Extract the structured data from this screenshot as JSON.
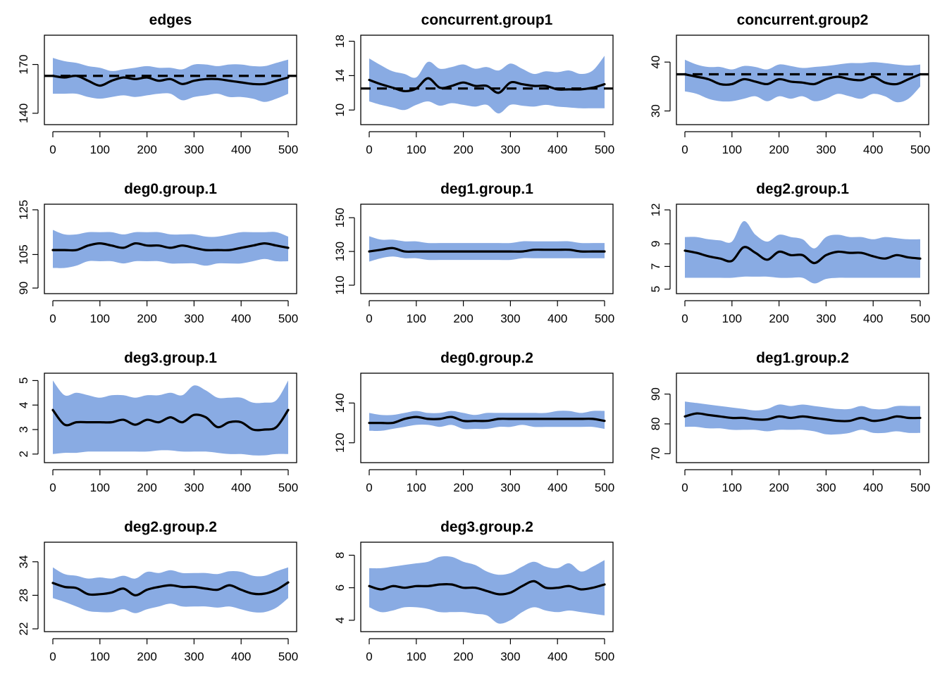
{
  "colors": {
    "band": "#89ABE3",
    "line": "#000000"
  },
  "chart_data": [
    {
      "type": "area",
      "title": "edges",
      "xlim": [
        0,
        500
      ],
      "ylim": [
        140,
        170
      ],
      "yrange": [
        133,
        188
      ],
      "xticks": [
        0,
        100,
        200,
        300,
        400,
        500
      ],
      "yticks": [
        140,
        170
      ],
      "target": 163,
      "x": [
        0,
        25,
        50,
        75,
        100,
        125,
        150,
        175,
        200,
        225,
        250,
        275,
        300,
        325,
        350,
        375,
        400,
        425,
        450,
        475,
        500
      ],
      "mean": [
        163,
        162,
        163,
        160,
        157,
        160,
        162,
        161,
        162,
        160,
        161,
        158,
        160,
        161,
        161,
        160,
        159,
        158,
        158,
        160,
        162
      ],
      "upper": [
        174,
        172,
        171,
        169,
        168,
        166,
        167,
        168,
        169,
        168,
        168,
        167,
        170,
        170,
        169,
        170,
        170,
        169,
        169,
        171,
        173
      ],
      "lower": [
        152,
        152,
        152,
        150,
        149,
        150,
        151,
        150,
        151,
        152,
        152,
        148,
        150,
        151,
        152,
        150,
        150,
        149,
        147,
        149,
        152
      ]
    },
    {
      "type": "area",
      "title": "concurrent.group1",
      "xlim": [
        0,
        500
      ],
      "ylim": [
        10,
        18
      ],
      "yrange": [
        8.3,
        18.7
      ],
      "xticks": [
        0,
        100,
        200,
        300,
        400,
        500
      ],
      "yticks": [
        10,
        14,
        18
      ],
      "target": 12.5,
      "x": [
        0,
        25,
        50,
        75,
        100,
        125,
        150,
        175,
        200,
        225,
        250,
        275,
        300,
        325,
        350,
        375,
        400,
        425,
        450,
        475,
        500
      ],
      "mean": [
        13.5,
        13.0,
        12.6,
        12.2,
        12.5,
        13.7,
        12.6,
        12.8,
        13.2,
        12.8,
        12.8,
        12.0,
        13.2,
        13.0,
        12.8,
        12.8,
        12.4,
        12.4,
        12.4,
        12.6,
        13.0
      ],
      "upper": [
        16.0,
        15.2,
        14.5,
        14.2,
        13.8,
        15.6,
        14.8,
        15.0,
        15.3,
        14.8,
        15.0,
        14.6,
        15.4,
        14.8,
        14.2,
        14.5,
        14.4,
        14.6,
        14.2,
        14.6,
        16.3
      ],
      "lower": [
        11.0,
        10.6,
        10.3,
        10.0,
        10.6,
        11.0,
        10.5,
        10.8,
        10.6,
        10.4,
        10.6,
        9.6,
        10.6,
        10.5,
        10.4,
        10.6,
        10.4,
        10.3,
        10.2,
        10.2,
        10.2
      ]
    },
    {
      "type": "area",
      "title": "concurrent.group2",
      "xlim": [
        0,
        500
      ],
      "ylim": [
        30,
        40
      ],
      "yrange": [
        27.2,
        45.5
      ],
      "xticks": [
        0,
        100,
        200,
        300,
        400,
        500
      ],
      "yticks": [
        30,
        40
      ],
      "target": 37.5,
      "x": [
        0,
        25,
        50,
        75,
        100,
        125,
        150,
        175,
        200,
        225,
        250,
        275,
        300,
        325,
        350,
        375,
        400,
        425,
        450,
        475,
        500
      ],
      "mean": [
        37.5,
        37.0,
        36.5,
        35.5,
        35.5,
        36.5,
        36.0,
        35.5,
        36.5,
        36.0,
        35.8,
        35.5,
        36.5,
        37.0,
        36.5,
        36.3,
        37.0,
        35.8,
        35.5,
        36.5,
        37.5
      ],
      "upper": [
        40.5,
        39.5,
        39.0,
        39.0,
        38.5,
        39.2,
        39.0,
        38.5,
        39.5,
        39.2,
        38.8,
        39.0,
        39.2,
        39.5,
        39.8,
        39.8,
        40.0,
        39.8,
        39.5,
        39.3,
        39.5
      ],
      "lower": [
        34.0,
        33.5,
        32.5,
        32.0,
        32.0,
        32.5,
        33.0,
        32.0,
        33.0,
        32.5,
        33.0,
        32.0,
        32.5,
        33.5,
        33.0,
        32.5,
        33.5,
        33.0,
        31.8,
        32.5,
        35.0
      ]
    },
    {
      "type": "area",
      "title": "deg0.group.1",
      "xlim": [
        0,
        500
      ],
      "ylim": [
        90,
        125
      ],
      "yrange": [
        87.5,
        127.5
      ],
      "xticks": [
        0,
        100,
        200,
        300,
        400,
        500
      ],
      "yticks": [
        90,
        105,
        125
      ],
      "x": [
        0,
        25,
        50,
        75,
        100,
        125,
        150,
        175,
        200,
        225,
        250,
        275,
        300,
        325,
        350,
        375,
        400,
        425,
        450,
        475,
        500
      ],
      "mean": [
        107,
        107,
        107,
        109,
        110,
        109,
        108,
        110,
        109,
        109,
        108,
        109,
        108,
        107,
        107,
        107,
        108,
        109,
        110,
        109,
        108
      ],
      "upper": [
        116,
        114,
        114,
        115,
        115,
        115,
        114,
        115,
        115,
        115,
        114,
        114,
        114,
        113,
        113,
        114,
        115,
        115,
        115,
        115,
        113
      ],
      "lower": [
        99,
        99,
        100,
        102,
        102,
        102,
        101,
        102,
        102,
        102,
        101,
        101,
        101,
        100,
        101,
        101,
        101,
        102,
        103,
        102,
        102
      ]
    },
    {
      "type": "area",
      "title": "deg1.group.1",
      "xlim": [
        0,
        500
      ],
      "ylim": [
        110,
        150
      ],
      "yrange": [
        105,
        158
      ],
      "xticks": [
        0,
        100,
        200,
        300,
        400,
        500
      ],
      "yticks": [
        110,
        130,
        150
      ],
      "x": [
        0,
        25,
        50,
        75,
        100,
        125,
        150,
        175,
        200,
        225,
        250,
        275,
        300,
        325,
        350,
        375,
        400,
        425,
        450,
        475,
        500
      ],
      "mean": [
        130,
        131,
        132,
        130,
        130,
        130,
        130,
        130,
        130,
        130,
        130,
        130,
        130,
        130,
        131,
        131,
        131,
        131,
        130,
        130,
        130
      ],
      "upper": [
        139,
        137,
        137,
        136,
        136,
        135,
        135,
        135,
        135,
        135,
        135,
        135,
        135,
        136,
        136,
        136,
        136,
        136,
        135,
        135,
        135
      ],
      "lower": [
        124,
        126,
        127,
        126,
        126,
        125,
        125,
        125,
        125,
        125,
        125,
        125,
        125,
        126,
        126,
        126,
        126,
        126,
        126,
        126,
        126
      ]
    },
    {
      "type": "area",
      "title": "deg2.group.1",
      "xlim": [
        0,
        500
      ],
      "ylim": [
        5,
        12
      ],
      "yrange": [
        4.6,
        12.5
      ],
      "xticks": [
        0,
        100,
        200,
        300,
        400,
        500
      ],
      "yticks": [
        5,
        7,
        9,
        12
      ],
      "x": [
        0,
        25,
        50,
        75,
        100,
        125,
        150,
        175,
        200,
        225,
        250,
        275,
        300,
        325,
        350,
        375,
        400,
        425,
        450,
        475,
        500
      ],
      "mean": [
        8.4,
        8.2,
        7.9,
        7.7,
        7.5,
        8.7,
        8.2,
        7.6,
        8.3,
        8.0,
        8.0,
        7.3,
        8.0,
        8.3,
        8.2,
        8.2,
        7.9,
        7.7,
        8.0,
        7.8,
        7.7
      ],
      "upper": [
        9.6,
        9.6,
        9.4,
        9.3,
        9.2,
        11.0,
        9.8,
        9.2,
        9.8,
        9.6,
        9.4,
        8.6,
        9.6,
        9.8,
        9.6,
        9.6,
        9.4,
        9.6,
        9.5,
        9.4,
        9.4
      ],
      "lower": [
        6.0,
        6.0,
        6.0,
        6.0,
        6.0,
        6.1,
        6.1,
        6.1,
        6.0,
        6.0,
        6.0,
        5.5,
        5.9,
        6.0,
        6.0,
        6.0,
        6.0,
        6.0,
        6.0,
        6.0,
        6.0
      ]
    },
    {
      "type": "area",
      "title": "deg3.group.1",
      "xlim": [
        0,
        500
      ],
      "ylim": [
        2,
        5
      ],
      "yrange": [
        1.65,
        5.3
      ],
      "xticks": [
        0,
        100,
        200,
        300,
        400,
        500
      ],
      "yticks": [
        2,
        3,
        4,
        5
      ],
      "x": [
        0,
        25,
        50,
        75,
        100,
        125,
        150,
        175,
        200,
        225,
        250,
        275,
        300,
        325,
        350,
        375,
        400,
        425,
        450,
        475,
        500
      ],
      "mean": [
        3.8,
        3.2,
        3.3,
        3.3,
        3.3,
        3.3,
        3.4,
        3.2,
        3.4,
        3.3,
        3.5,
        3.3,
        3.6,
        3.5,
        3.1,
        3.3,
        3.3,
        3.0,
        3.0,
        3.1,
        3.8
      ],
      "upper": [
        5.0,
        4.4,
        4.5,
        4.4,
        4.3,
        4.4,
        4.4,
        4.3,
        4.4,
        4.4,
        4.5,
        4.4,
        4.8,
        4.6,
        4.3,
        4.3,
        4.3,
        4.1,
        4.1,
        4.2,
        5.0
      ],
      "lower": [
        2.0,
        2.05,
        2.05,
        2.1,
        2.1,
        2.1,
        2.1,
        2.1,
        2.1,
        2.15,
        2.15,
        2.1,
        2.1,
        2.1,
        2.05,
        2.0,
        2.0,
        1.95,
        1.95,
        2.0,
        2.0
      ]
    },
    {
      "type": "area",
      "title": "deg0.group.2",
      "xlim": [
        0,
        500
      ],
      "ylim": [
        120,
        140
      ],
      "yrange": [
        110,
        155
      ],
      "xticks": [
        0,
        100,
        200,
        300,
        400,
        500
      ],
      "yticks": [
        120,
        140
      ],
      "x": [
        0,
        25,
        50,
        75,
        100,
        125,
        150,
        175,
        200,
        225,
        250,
        275,
        300,
        325,
        350,
        375,
        400,
        425,
        450,
        475,
        500
      ],
      "mean": [
        130,
        130,
        130,
        132,
        133,
        132,
        132,
        133,
        131,
        131,
        131,
        132,
        132,
        132,
        132,
        132,
        132,
        132,
        132,
        132,
        131
      ],
      "upper": [
        135,
        134,
        134,
        135,
        136,
        135,
        135,
        136,
        135,
        134,
        135,
        135,
        135,
        135,
        135,
        135,
        136,
        136,
        135,
        136,
        136
      ],
      "lower": [
        126,
        126,
        127,
        128,
        129,
        129,
        128,
        129,
        127,
        127,
        127,
        128,
        128,
        129,
        128,
        128,
        128,
        128,
        128,
        128,
        127
      ]
    },
    {
      "type": "area",
      "title": "deg1.group.2",
      "xlim": [
        0,
        500
      ],
      "ylim": [
        70,
        90
      ],
      "yrange": [
        67,
        97
      ],
      "xticks": [
        0,
        100,
        200,
        300,
        400,
        500
      ],
      "yticks": [
        70,
        80,
        90
      ],
      "x": [
        0,
        25,
        50,
        75,
        100,
        125,
        150,
        175,
        200,
        225,
        250,
        275,
        300,
        325,
        350,
        375,
        400,
        425,
        450,
        475,
        500
      ],
      "mean": [
        82.5,
        83.5,
        83,
        82.5,
        82,
        82,
        81.5,
        81.5,
        82.5,
        82,
        82.5,
        82,
        81.5,
        81,
        81,
        82,
        81,
        81.5,
        82.5,
        82,
        82
      ],
      "upper": [
        87.5,
        87,
        86.5,
        86,
        85.5,
        85,
        84.5,
        85,
        86.5,
        86,
        86.5,
        86,
        85.5,
        85,
        85,
        86,
        85,
        85,
        86,
        86,
        86
      ],
      "lower": [
        79,
        79,
        78.5,
        78.5,
        78,
        78,
        78,
        77.5,
        78,
        78,
        78,
        77.5,
        76.5,
        76.5,
        77,
        78,
        77,
        77,
        77.5,
        77,
        77
      ]
    },
    {
      "type": "area",
      "title": "deg2.group.2",
      "xlim": [
        0,
        500
      ],
      "ylim": [
        22,
        34
      ],
      "yrange": [
        21.5,
        37.5
      ],
      "xticks": [
        0,
        100,
        200,
        300,
        400,
        500
      ],
      "yticks": [
        22,
        28,
        34
      ],
      "x": [
        0,
        25,
        50,
        75,
        100,
        125,
        150,
        175,
        200,
        225,
        250,
        275,
        300,
        325,
        350,
        375,
        400,
        425,
        450,
        475,
        500
      ],
      "mean": [
        30.2,
        29.5,
        29.3,
        28.2,
        28.2,
        28.5,
        29.2,
        28.0,
        29.0,
        29.5,
        29.8,
        29.5,
        29.5,
        29.2,
        29.0,
        29.8,
        29.0,
        28.3,
        28.3,
        29.0,
        30.3
      ],
      "upper": [
        33.0,
        31.8,
        31.5,
        31.0,
        31.2,
        31.0,
        31.5,
        31.0,
        32.2,
        32.0,
        32.5,
        32.0,
        32.0,
        32.0,
        31.8,
        32.3,
        32.2,
        31.5,
        31.5,
        32.3,
        33.0
      ],
      "lower": [
        27.5,
        26.8,
        26.0,
        25.2,
        25.0,
        25.0,
        25.5,
        24.8,
        25.5,
        26.0,
        26.5,
        26.0,
        26.0,
        26.0,
        25.8,
        26.0,
        25.5,
        25.0,
        25.0,
        25.8,
        27.5
      ]
    },
    {
      "type": "area",
      "title": "deg3.group.2",
      "xlim": [
        0,
        500
      ],
      "ylim": [
        4,
        8
      ],
      "yrange": [
        3.3,
        8.8
      ],
      "xticks": [
        0,
        100,
        200,
        300,
        400,
        500
      ],
      "yticks": [
        4,
        6,
        8
      ],
      "x": [
        0,
        25,
        50,
        75,
        100,
        125,
        150,
        175,
        200,
        225,
        250,
        275,
        300,
        325,
        350,
        375,
        400,
        425,
        450,
        475,
        500
      ],
      "mean": [
        6.1,
        5.9,
        6.1,
        6.0,
        6.1,
        6.1,
        6.2,
        6.2,
        6.0,
        6.0,
        5.8,
        5.6,
        5.7,
        6.1,
        6.4,
        6.0,
        6.0,
        6.1,
        5.9,
        6.0,
        6.2
      ],
      "upper": [
        7.2,
        7.2,
        7.3,
        7.4,
        7.5,
        7.6,
        7.9,
        7.9,
        7.6,
        7.4,
        7.0,
        6.8,
        6.9,
        7.3,
        7.6,
        7.3,
        7.2,
        7.5,
        7.0,
        7.3,
        7.7
      ],
      "lower": [
        4.8,
        4.5,
        4.6,
        4.8,
        4.8,
        4.7,
        4.5,
        4.5,
        4.5,
        4.4,
        4.3,
        3.8,
        4.0,
        4.5,
        4.8,
        4.6,
        4.5,
        4.6,
        4.5,
        4.4,
        4.3
      ]
    }
  ]
}
